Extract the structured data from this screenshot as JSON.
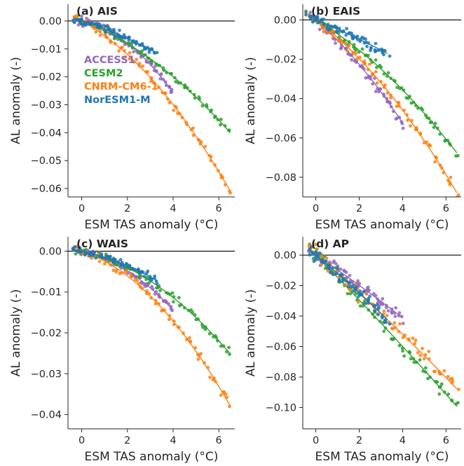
{
  "colors": {
    "ACCESS": "#9467bd",
    "CESM2": "#2ca02c",
    "CNRM": "#ff7f0e",
    "NorESM": "#1f77b4"
  },
  "legend": [
    {
      "label": "ACCESS1",
      "color": "#9467bd"
    },
    {
      "label": "CESM2",
      "color": "#2ca02c"
    },
    {
      "label": "CNRM-CM6-1",
      "color": "#ff7f0e"
    },
    {
      "label": "NorESM1-M",
      "color": "#1f77b4"
    }
  ],
  "chart_data": [
    {
      "type": "scatter",
      "title": "(a) AIS",
      "xlabel": "ESM TAS anomaly (°C)",
      "ylabel": "AL anomaly (-)",
      "xlim": [
        -0.6,
        6.7
      ],
      "ylim": [
        -0.063,
        0.006
      ],
      "xticks": [
        0,
        2,
        4,
        6
      ],
      "yticks": [
        0.0,
        -0.01,
        -0.02,
        -0.03,
        -0.04,
        -0.05,
        -0.06
      ],
      "ytick_labels": [
        "0.00",
        "−0.01",
        "−0.02",
        "−0.03",
        "−0.04",
        "−0.05",
        "−0.06"
      ],
      "zero_line": true,
      "show_legend": true,
      "series": [
        {
          "name": "ACCESS1",
          "color": "#9467bd",
          "xmax": 4.0,
          "fit": [
            -0.0016,
            -0.0012
          ],
          "noise": 0.0015,
          "x": [
            -0.2,
            0.3,
            0.8,
            1.2,
            1.6,
            2.0,
            2.4,
            2.8,
            3.1,
            3.4,
            3.7,
            4.0
          ],
          "y": [
            0.001,
            -0.001,
            -0.004,
            -0.006,
            -0.01,
            -0.013,
            -0.016,
            -0.02,
            -0.023,
            -0.027,
            -0.028,
            -0.031
          ]
        },
        {
          "name": "CESM2",
          "color": "#2ca02c",
          "xmax": 6.5,
          "fit": [
            -0.0031,
            -0.00047
          ],
          "noise": 0.0012,
          "x": [
            0.0,
            0.5,
            1.0,
            1.5,
            2.0,
            2.5,
            3.0,
            3.5,
            4.0,
            4.5,
            5.0,
            5.5,
            6.0,
            6.5
          ],
          "y": [
            0.0,
            -0.002,
            -0.003,
            -0.006,
            -0.008,
            -0.011,
            -0.014,
            -0.016,
            -0.02,
            -0.024,
            -0.029,
            -0.032,
            -0.042,
            -0.045
          ]
        },
        {
          "name": "CNRM-CM6-1",
          "color": "#ff7f0e",
          "xmax": 6.5,
          "fit": [
            -0.0045,
            -0.00075
          ],
          "noise": 0.0014,
          "x": [
            0.0,
            0.5,
            1.0,
            1.5,
            2.0,
            2.5,
            3.0,
            3.5,
            4.0,
            4.5,
            5.0,
            5.5,
            6.0,
            6.5
          ],
          "y": [
            0.0,
            -0.002,
            -0.005,
            -0.009,
            -0.012,
            -0.016,
            -0.02,
            -0.023,
            -0.03,
            -0.036,
            -0.041,
            -0.046,
            -0.053,
            -0.06
          ]
        },
        {
          "name": "NorESM1-M",
          "color": "#1f77b4",
          "xmax": 3.3,
          "fit": [
            -0.0025,
            -0.0003
          ],
          "noise": 0.0012,
          "x": [
            -0.2,
            0.3,
            0.8,
            1.2,
            1.6,
            2.0,
            2.4,
            2.8,
            3.1,
            3.3
          ],
          "y": [
            0.001,
            0.0,
            -0.002,
            -0.003,
            -0.005,
            -0.006,
            -0.007,
            -0.008,
            -0.01,
            -0.012
          ]
        }
      ]
    },
    {
      "type": "scatter",
      "title": "(b) EAIS",
      "xlabel": "ESM TAS anomaly (°C)",
      "ylabel": "AL anomaly (-)",
      "xlim": [
        -0.6,
        6.7
      ],
      "ylim": [
        -0.09,
        0.008
      ],
      "xticks": [
        0,
        2,
        4,
        6
      ],
      "yticks": [
        0.0,
        -0.02,
        -0.04,
        -0.06,
        -0.08
      ],
      "ytick_labels": [
        "0.00",
        "−0.02",
        "−0.04",
        "−0.06",
        "−0.08"
      ],
      "zero_line": true,
      "show_legend": false,
      "series": [
        {
          "name": "ACCESS1",
          "color": "#9467bd",
          "xmax": 4.0,
          "fit": [
            -0.0095,
            -0.0009
          ],
          "noise": 0.0028,
          "x": [
            -0.2,
            0.3,
            0.8,
            1.2,
            1.6,
            2.0,
            2.4,
            2.8,
            3.1,
            3.4,
            3.7,
            4.0
          ],
          "y": [
            0.001,
            -0.003,
            -0.008,
            -0.012,
            -0.018,
            -0.023,
            -0.026,
            -0.031,
            -0.035,
            -0.039,
            -0.043,
            -0.046
          ]
        },
        {
          "name": "CESM2",
          "color": "#2ca02c",
          "xmax": 6.5,
          "fit": [
            -0.0065,
            -0.0006
          ],
          "noise": 0.0022,
          "x": [
            0.0,
            0.5,
            1.0,
            1.5,
            2.0,
            2.5,
            3.0,
            3.5,
            4.0,
            4.5,
            5.0,
            5.5,
            6.0,
            6.5
          ],
          "y": [
            0.0,
            -0.004,
            -0.007,
            -0.012,
            -0.016,
            -0.02,
            -0.025,
            -0.029,
            -0.036,
            -0.043,
            -0.049,
            -0.056,
            -0.066,
            -0.07
          ]
        },
        {
          "name": "CNRM-CM6-1",
          "color": "#ff7f0e",
          "xmax": 6.5,
          "fit": [
            -0.0082,
            -0.00082
          ],
          "noise": 0.0024,
          "x": [
            0.0,
            0.5,
            1.0,
            1.5,
            2.0,
            2.5,
            3.0,
            3.5,
            4.0,
            4.5,
            5.0,
            5.5,
            6.0,
            6.5
          ],
          "y": [
            0.0,
            -0.004,
            -0.01,
            -0.014,
            -0.02,
            -0.025,
            -0.03,
            -0.036,
            -0.043,
            -0.05,
            -0.058,
            -0.066,
            -0.075,
            -0.085
          ]
        },
        {
          "name": "NorESM1-M",
          "color": "#1f77b4",
          "xmax": 3.3,
          "fit": [
            -0.0045,
            -0.0002
          ],
          "noise": 0.0022,
          "x": [
            -0.2,
            0.3,
            0.8,
            1.2,
            1.6,
            2.0,
            2.4,
            2.8,
            3.1,
            3.3
          ],
          "y": [
            0.001,
            -0.001,
            -0.002,
            -0.004,
            -0.008,
            -0.01,
            -0.012,
            -0.014,
            -0.016,
            -0.018
          ]
        }
      ]
    },
    {
      "type": "scatter",
      "title": "(c) WAIS",
      "xlabel": "ESM TAS anomaly (°C)",
      "ylabel": "AL anomaly (-)",
      "xlim": [
        -0.6,
        6.7
      ],
      "ylim": [
        -0.0435,
        0.0035
      ],
      "xticks": [
        0,
        2,
        4,
        6
      ],
      "yticks": [
        0.0,
        -0.01,
        -0.02,
        -0.03,
        -0.04
      ],
      "ytick_labels": [
        "0.00",
        "−0.01",
        "−0.02",
        "−0.03",
        "−0.04"
      ],
      "zero_line": true,
      "show_legend": false,
      "series": [
        {
          "name": "ACCESS1",
          "color": "#9467bd",
          "xmax": 4.0,
          "fit": [
            -0.0012,
            -0.0006
          ],
          "noise": 0.0008,
          "x": [
            -0.2,
            0.3,
            0.8,
            1.2,
            1.6,
            2.0,
            2.4,
            2.8,
            3.1,
            3.4,
            3.7,
            4.0
          ],
          "y": [
            0.0,
            -0.0005,
            -0.001,
            -0.002,
            -0.003,
            -0.005,
            -0.007,
            -0.009,
            -0.011,
            -0.013,
            -0.014,
            -0.016
          ]
        },
        {
          "name": "CESM2",
          "color": "#2ca02c",
          "xmax": 6.5,
          "fit": [
            -0.0012,
            -0.00041
          ],
          "noise": 0.001,
          "x": [
            0.0,
            0.5,
            1.0,
            1.5,
            2.0,
            2.5,
            3.0,
            3.5,
            4.0,
            4.5,
            5.0,
            5.5,
            6.0,
            6.5
          ],
          "y": [
            0.0,
            -0.001,
            -0.002,
            -0.003,
            -0.004,
            -0.005,
            -0.007,
            -0.008,
            -0.011,
            -0.013,
            -0.016,
            -0.019,
            -0.023,
            -0.025
          ]
        },
        {
          "name": "CNRM-CM6-1",
          "color": "#ff7f0e",
          "xmax": 6.5,
          "fit": [
            -0.0018,
            -0.00062
          ],
          "noise": 0.0012,
          "x": [
            0.0,
            0.5,
            1.0,
            1.5,
            2.0,
            2.5,
            3.0,
            3.5,
            4.0,
            4.5,
            5.0,
            5.5,
            6.0,
            6.5
          ],
          "y": [
            0.0,
            -0.001,
            -0.002,
            -0.004,
            -0.005,
            -0.008,
            -0.01,
            -0.013,
            -0.016,
            -0.02,
            -0.024,
            -0.028,
            -0.034,
            -0.041
          ]
        },
        {
          "name": "NorESM1-M",
          "color": "#1f77b4",
          "xmax": 3.3,
          "fit": [
            -0.0012,
            -0.0003
          ],
          "noise": 0.0008,
          "x": [
            -0.2,
            0.3,
            0.8,
            1.2,
            1.6,
            2.0,
            2.4,
            2.8,
            3.1,
            3.3
          ],
          "y": [
            0.0,
            0.0,
            -0.001,
            -0.002,
            -0.002,
            -0.003,
            -0.004,
            -0.005,
            -0.006,
            -0.007
          ]
        }
      ]
    },
    {
      "type": "scatter",
      "title": "(d) AP",
      "xlabel": "ESM TAS anomaly (°C)",
      "ylabel": "AL anomaly (-)",
      "xlim": [
        -0.6,
        6.7
      ],
      "ylim": [
        -0.114,
        0.012
      ],
      "xticks": [
        0,
        2,
        4,
        6
      ],
      "yticks": [
        0.0,
        -0.02,
        -0.04,
        -0.06,
        -0.08,
        -0.1
      ],
      "ytick_labels": [
        "0.00",
        "−0.02",
        "−0.04",
        "−0.06",
        "−0.08",
        "−0.10"
      ],
      "zero_line": true,
      "show_legend": false,
      "series": [
        {
          "name": "ACCESS1",
          "color": "#9467bd",
          "xmax": 4.0,
          "fit": [
            -0.0095,
            -0.0002
          ],
          "noise": 0.004,
          "x": [
            -0.2,
            0.3,
            0.8,
            1.2,
            1.6,
            2.0,
            2.4,
            2.8,
            3.1,
            3.4,
            3.7,
            4.0
          ],
          "y": [
            0.003,
            -0.003,
            -0.008,
            -0.012,
            -0.016,
            -0.02,
            -0.024,
            -0.028,
            -0.032,
            -0.036,
            -0.04,
            -0.045
          ]
        },
        {
          "name": "CESM2",
          "color": "#2ca02c",
          "xmax": 6.5,
          "fit": [
            -0.0145,
            -0.00012
          ],
          "noise": 0.005,
          "x": [
            0.0,
            0.5,
            1.0,
            1.5,
            2.0,
            2.5,
            3.0,
            3.5,
            4.0,
            4.5,
            5.0,
            5.5,
            6.0,
            6.5
          ],
          "y": [
            0.0,
            -0.007,
            -0.014,
            -0.022,
            -0.028,
            -0.035,
            -0.043,
            -0.05,
            -0.057,
            -0.065,
            -0.074,
            -0.08,
            -0.09,
            -0.1
          ]
        },
        {
          "name": "CNRM-CM6-1",
          "color": "#ff7f0e",
          "xmax": 6.5,
          "fit": [
            -0.0122,
            -0.0002
          ],
          "noise": 0.005,
          "x": [
            0.0,
            0.5,
            1.0,
            1.5,
            2.0,
            2.5,
            3.0,
            3.5,
            4.0,
            4.5,
            5.0,
            5.5,
            6.0,
            6.5
          ],
          "y": [
            0.0,
            -0.006,
            -0.012,
            -0.019,
            -0.025,
            -0.031,
            -0.038,
            -0.044,
            -0.052,
            -0.058,
            -0.066,
            -0.074,
            -0.082,
            -0.09
          ]
        },
        {
          "name": "NorESM1-M",
          "color": "#1f77b4",
          "xmax": 3.3,
          "fit": [
            -0.0115,
            -0.0004
          ],
          "noise": 0.004,
          "x": [
            -0.2,
            0.3,
            0.8,
            1.2,
            1.6,
            2.0,
            2.4,
            2.8,
            3.1,
            3.3
          ],
          "y": [
            0.003,
            -0.002,
            -0.006,
            -0.012,
            -0.017,
            -0.021,
            -0.025,
            -0.03,
            -0.033,
            -0.036
          ]
        }
      ]
    }
  ]
}
